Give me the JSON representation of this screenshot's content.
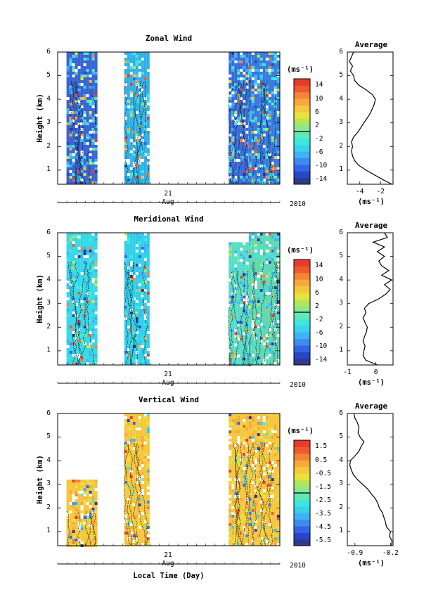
{
  "chart_data": [
    {
      "type": "heatmap",
      "title": "Zonal Wind",
      "ylabel": "Height (km)",
      "yticks": [
        "1",
        "2",
        "3",
        "4",
        "5",
        "6"
      ],
      "ylim": [
        0.4,
        6
      ],
      "xlabel": "",
      "xtick_label": "21",
      "x_month": "Aug",
      "x_year": "2010",
      "colorbar_unit": "(ms⁻¹)",
      "colorbar_ticks": [
        "14",
        "10",
        "6",
        "2",
        "-2",
        "-6",
        "-10",
        "-14"
      ],
      "colorbar_range": [
        -16,
        16
      ],
      "data_blocks": [
        {
          "x": [
            0.04,
            0.17
          ],
          "ymax": 6.0,
          "base": "#3a63d2"
        },
        {
          "x": [
            0.3,
            0.41
          ],
          "ymax": 6.0,
          "base": "#2fb0e6"
        },
        {
          "x": [
            0.77,
            0.86
          ],
          "ymax": 6.0,
          "base": "#3a6ad8"
        },
        {
          "x": [
            0.86,
            0.99
          ],
          "ymax": 6.0,
          "base": "#3579dd"
        }
      ],
      "profile": {
        "title": "Average",
        "xlabel": "(ms⁻¹)",
        "xticks": [
          "-4",
          "-2"
        ],
        "xlim": [
          -5.2,
          -0.8
        ],
        "heights": [
          0.4,
          0.6,
          0.8,
          1.0,
          1.2,
          1.4,
          1.6,
          1.8,
          2.0,
          2.2,
          2.4,
          2.6,
          2.8,
          3.0,
          3.2,
          3.4,
          3.6,
          3.8,
          4.0,
          4.2,
          4.4,
          4.6,
          4.8,
          5.0,
          5.2,
          5.4,
          5.6,
          5.8,
          6.0
        ],
        "values": [
          -0.9,
          -1.8,
          -2.6,
          -3.4,
          -4.1,
          -4.5,
          -4.7,
          -4.8,
          -4.7,
          -4.8,
          -4.6,
          -4.2,
          -3.9,
          -3.6,
          -3.3,
          -3.0,
          -2.8,
          -2.6,
          -2.5,
          -2.8,
          -3.4,
          -4.1,
          -4.5,
          -4.6,
          -4.9,
          -4.7,
          -5.0,
          -4.8,
          -4.6
        ]
      }
    },
    {
      "type": "heatmap",
      "title": "Meridional Wind",
      "ylabel": "Height (km)",
      "yticks": [
        "1",
        "2",
        "3",
        "4",
        "5",
        "6"
      ],
      "ylim": [
        0.4,
        6
      ],
      "xlabel": "",
      "xtick_label": "21",
      "x_month": "Aug",
      "x_year": "2010",
      "colorbar_unit": "(ms⁻¹)",
      "colorbar_ticks": [
        "14",
        "10",
        "6",
        "2",
        "-2",
        "-6",
        "-10",
        "-14"
      ],
      "colorbar_range": [
        -16,
        16
      ],
      "data_blocks": [
        {
          "x": [
            0.04,
            0.17
          ],
          "ymax": 6.0,
          "base": "#35d8e6"
        },
        {
          "x": [
            0.3,
            0.41
          ],
          "ymax": 6.0,
          "base": "#2fd0e8"
        },
        {
          "x": [
            0.77,
            0.86
          ],
          "ymax": 5.6,
          "base": "#56dcc0"
        },
        {
          "x": [
            0.86,
            0.99
          ],
          "ymax": 6.0,
          "base": "#5ed8b0"
        }
      ],
      "profile": {
        "title": "Average",
        "xlabel": "(ms⁻¹)",
        "xticks": [
          "-1",
          "0"
        ],
        "xlim": [
          -1.0,
          0.6
        ],
        "heights": [
          0.4,
          0.6,
          0.8,
          1.0,
          1.2,
          1.4,
          1.6,
          1.8,
          2.0,
          2.2,
          2.4,
          2.6,
          2.8,
          3.0,
          3.2,
          3.4,
          3.6,
          3.8,
          4.0,
          4.2,
          4.4,
          4.6,
          4.8,
          5.0,
          5.2,
          5.4,
          5.6,
          5.8,
          6.0
        ],
        "values": [
          0.05,
          -0.35,
          -0.45,
          -0.42,
          -0.38,
          -0.45,
          -0.4,
          -0.33,
          -0.3,
          -0.38,
          -0.45,
          -0.35,
          -0.4,
          -0.25,
          0.1,
          0.35,
          0.5,
          0.3,
          0.55,
          0.2,
          0.45,
          0.2,
          0.1,
          0.3,
          0.05,
          0.3,
          -0.1,
          0.4,
          0.3
        ]
      }
    },
    {
      "type": "heatmap",
      "title": "Vertical Wind",
      "ylabel": "Height (km)",
      "yticks": [
        "1",
        "2",
        "3",
        "4",
        "5",
        "6"
      ],
      "ylim": [
        0.4,
        6
      ],
      "xlabel": "Local Time (Day)",
      "xtick_label": "21",
      "x_month": "Aug",
      "x_year": "2010",
      "colorbar_unit": "(ms⁻¹)",
      "colorbar_ticks": [
        "1.5",
        "0.5",
        "-0.5",
        "-1.5",
        "-2.5",
        "-3.5",
        "-4.5",
        "-5.5"
      ],
      "colorbar_range": [
        -6,
        2
      ],
      "data_blocks": [
        {
          "x": [
            0.04,
            0.17
          ],
          "ymax": 3.2,
          "base": "#f6c63c"
        },
        {
          "x": [
            0.3,
            0.41
          ],
          "ymax": 6.0,
          "base": "#f6c63c"
        },
        {
          "x": [
            0.77,
            0.86
          ],
          "ymax": 6.0,
          "base": "#f6c63c"
        },
        {
          "x": [
            0.86,
            0.99
          ],
          "ymax": 6.0,
          "base": "#f6c63c"
        }
      ],
      "profile": {
        "title": "Average",
        "xlabel": "(ms⁻¹)",
        "xticks": [
          "-0.9",
          "-0.2"
        ],
        "xlim": [
          -1.05,
          -0.15
        ],
        "heights": [
          0.4,
          0.6,
          0.8,
          1.0,
          1.2,
          1.4,
          1.6,
          1.8,
          2.0,
          2.2,
          2.4,
          2.6,
          2.8,
          3.0,
          3.2,
          3.4,
          3.6,
          3.8,
          4.0,
          4.2,
          4.4,
          4.6,
          4.8,
          5.0,
          5.2,
          5.4,
          5.6,
          5.8,
          6.0
        ],
        "values": [
          -0.18,
          -0.17,
          -0.22,
          -0.2,
          -0.28,
          -0.3,
          -0.33,
          -0.36,
          -0.42,
          -0.45,
          -0.5,
          -0.58,
          -0.65,
          -0.75,
          -0.85,
          -0.93,
          -0.97,
          -1.0,
          -0.99,
          -0.9,
          -0.82,
          -0.78,
          -0.72,
          -0.8,
          -0.84,
          -0.82,
          -0.85,
          -0.9,
          -0.92
        ]
      }
    }
  ],
  "colors": {
    "colorbar": [
      "#2e3a8c",
      "#2846c8",
      "#3366e6",
      "#3e8cf2",
      "#3fb2f2",
      "#38d2ea",
      "#3ee6e0",
      "#60e8b8",
      "#8ae890",
      "#b6e45a",
      "#e8e23c",
      "#f6c63c",
      "#f7a83a",
      "#f48436",
      "#ee5a30",
      "#e63c2e"
    ],
    "contour": "#000000",
    "axis": "#000000"
  }
}
